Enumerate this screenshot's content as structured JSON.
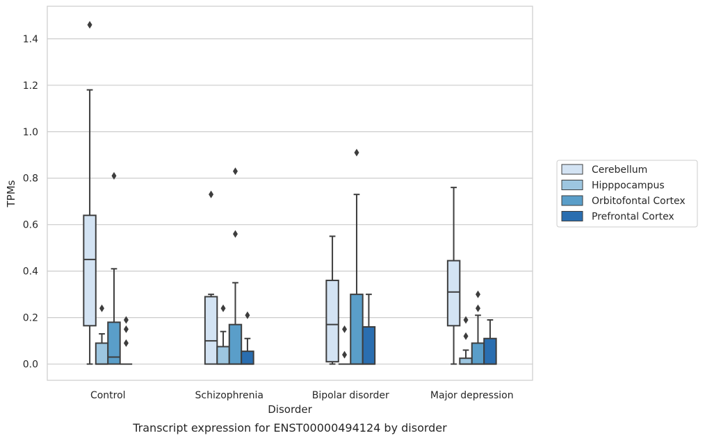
{
  "chart_data": {
    "type": "box",
    "xlabel": "Disorder",
    "ylabel": "TPMs",
    "caption": "Transcript expression for ENST00000494124 by disorder",
    "ylim": [
      -0.07,
      1.54
    ],
    "yticks": [
      0.0,
      0.2,
      0.4,
      0.6,
      0.8,
      1.0,
      1.2,
      1.4
    ],
    "ytick_labels": [
      "0.0",
      "0.2",
      "0.4",
      "0.6",
      "0.8",
      "1.0",
      "1.2",
      "1.4"
    ],
    "grid": "horizontal",
    "legend_position": "right",
    "categories": [
      "Control",
      "Schizophrenia",
      "Bipolar disorder",
      "Major depression"
    ],
    "series": [
      {
        "name": "Cerebellum",
        "color": "#d3e3f3",
        "boxes": [
          {
            "whislo": 0.0,
            "q1": 0.165,
            "med": 0.45,
            "q3": 0.64,
            "whishi": 1.18,
            "fliers": [
              1.46
            ]
          },
          {
            "whislo": 0.0,
            "q1": 0.0,
            "med": 0.1,
            "q3": 0.29,
            "whishi": 0.3,
            "fliers": [
              0.73
            ]
          },
          {
            "whislo": 0.0,
            "q1": 0.01,
            "med": 0.17,
            "q3": 0.36,
            "whishi": 0.55,
            "fliers": []
          },
          {
            "whislo": 0.0,
            "q1": 0.165,
            "med": 0.31,
            "q3": 0.445,
            "whishi": 0.76,
            "fliers": []
          }
        ]
      },
      {
        "name": "Hipppocampus",
        "color": "#9dc6e0",
        "boxes": [
          {
            "whislo": 0.0,
            "q1": 0.0,
            "med": 0.0,
            "q3": 0.09,
            "whishi": 0.13,
            "fliers": [
              0.24
            ]
          },
          {
            "whislo": 0.0,
            "q1": 0.0,
            "med": 0.0,
            "q3": 0.075,
            "whishi": 0.14,
            "fliers": [
              0.24
            ]
          },
          {
            "whislo": 0.0,
            "q1": 0.0,
            "med": 0.0,
            "q3": 0.0,
            "whishi": 0.0,
            "fliers": [
              0.04,
              0.15
            ]
          },
          {
            "whislo": 0.0,
            "q1": 0.0,
            "med": 0.0,
            "q3": 0.025,
            "whishi": 0.06,
            "fliers": [
              0.12,
              0.19
            ]
          }
        ]
      },
      {
        "name": "Orbitofontal Cortex",
        "color": "#5a9ec9",
        "boxes": [
          {
            "whislo": 0.0,
            "q1": 0.0,
            "med": 0.03,
            "q3": 0.18,
            "whishi": 0.41,
            "fliers": [
              0.81
            ]
          },
          {
            "whislo": 0.0,
            "q1": 0.0,
            "med": 0.0,
            "q3": 0.17,
            "whishi": 0.35,
            "fliers": [
              0.56,
              0.83
            ]
          },
          {
            "whislo": 0.0,
            "q1": 0.0,
            "med": 0.0,
            "q3": 0.3,
            "whishi": 0.73,
            "fliers": [
              0.91
            ]
          },
          {
            "whislo": 0.0,
            "q1": 0.0,
            "med": 0.0,
            "q3": 0.09,
            "whishi": 0.21,
            "fliers": [
              0.24,
              0.3
            ]
          }
        ]
      },
      {
        "name": "Prefrontal Cortex",
        "color": "#2a6eb0",
        "boxes": [
          {
            "whislo": 0.0,
            "q1": 0.0,
            "med": 0.0,
            "q3": 0.0,
            "whishi": 0.0,
            "fliers": [
              0.09,
              0.15,
              0.19
            ]
          },
          {
            "whislo": 0.0,
            "q1": 0.0,
            "med": 0.0,
            "q3": 0.055,
            "whishi": 0.11,
            "fliers": [
              0.21
            ]
          },
          {
            "whislo": 0.0,
            "q1": 0.0,
            "med": 0.0,
            "q3": 0.16,
            "whishi": 0.3,
            "fliers": []
          },
          {
            "whislo": 0.0,
            "q1": 0.0,
            "med": 0.0,
            "q3": 0.11,
            "whishi": 0.19,
            "fliers": []
          }
        ]
      }
    ]
  }
}
